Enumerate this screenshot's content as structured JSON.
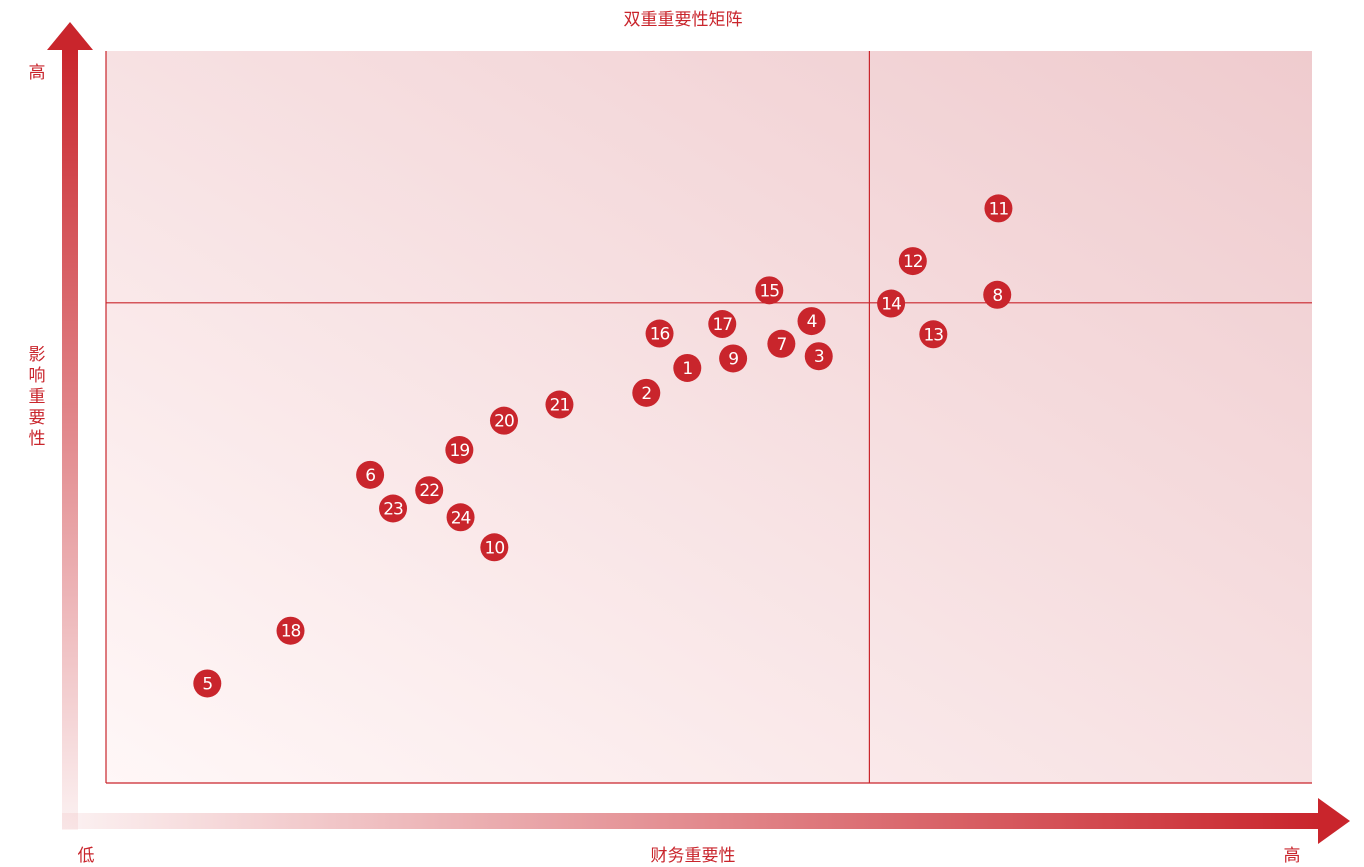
{
  "chart_data": {
    "type": "scatter",
    "title": "双重重要性矩阵",
    "xlabel": "财务重要性",
    "ylabel": "影响重要性",
    "x_low_label": "低",
    "x_high_label": "高",
    "y_high_label": "高",
    "xlim": [
      0,
      100
    ],
    "ylim": [
      0,
      100
    ],
    "quadrant_threshold": {
      "x": 63.3,
      "y": 65.6
    },
    "colors": {
      "accent": "#c9252c",
      "dot": "#c9252c",
      "plot_bg_light": "#fff7f7",
      "plot_bg_dark": "#efcbce",
      "grid_line": "#c9252c"
    },
    "points": [
      {
        "label": "1",
        "x": 48.2,
        "y": 56.7
      },
      {
        "label": "2",
        "x": 44.8,
        "y": 53.3
      },
      {
        "label": "3",
        "x": 59.1,
        "y": 58.3
      },
      {
        "label": "4",
        "x": 58.5,
        "y": 63.1
      },
      {
        "label": "5",
        "x": 8.4,
        "y": 13.6
      },
      {
        "label": "6",
        "x": 21.9,
        "y": 42.1
      },
      {
        "label": "7",
        "x": 56.0,
        "y": 60.0
      },
      {
        "label": "8",
        "x": 73.9,
        "y": 66.7
      },
      {
        "label": "9",
        "x": 52.0,
        "y": 58.0
      },
      {
        "label": "10",
        "x": 32.2,
        "y": 32.2
      },
      {
        "label": "11",
        "x": 74.0,
        "y": 78.5
      },
      {
        "label": "12",
        "x": 66.9,
        "y": 71.3
      },
      {
        "label": "13",
        "x": 68.6,
        "y": 61.3
      },
      {
        "label": "14",
        "x": 65.1,
        "y": 65.5
      },
      {
        "label": "15",
        "x": 55.0,
        "y": 67.3
      },
      {
        "label": "16",
        "x": 45.9,
        "y": 61.4
      },
      {
        "label": "17",
        "x": 51.1,
        "y": 62.7
      },
      {
        "label": "18",
        "x": 15.3,
        "y": 20.8
      },
      {
        "label": "19",
        "x": 29.3,
        "y": 45.5
      },
      {
        "label": "20",
        "x": 33.0,
        "y": 49.5
      },
      {
        "label": "21",
        "x": 37.6,
        "y": 51.7
      },
      {
        "label": "22",
        "x": 26.8,
        "y": 40.0
      },
      {
        "label": "23",
        "x": 23.8,
        "y": 37.5
      },
      {
        "label": "24",
        "x": 29.4,
        "y": 36.3
      }
    ]
  }
}
